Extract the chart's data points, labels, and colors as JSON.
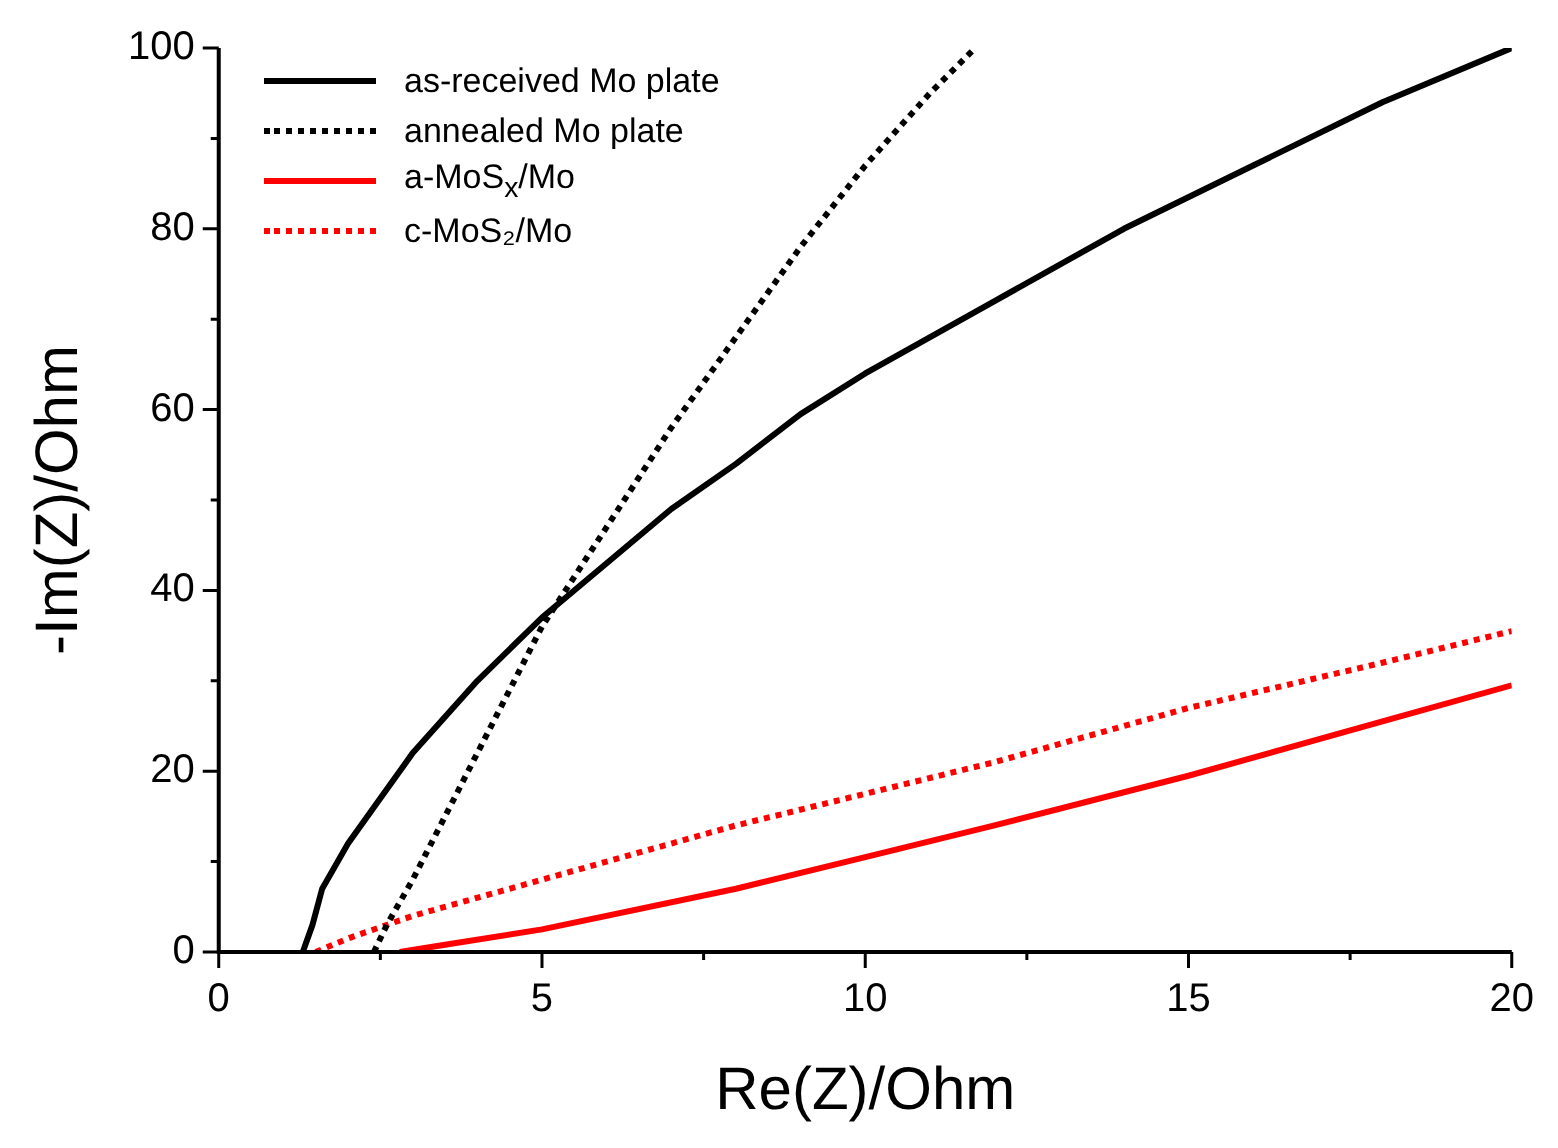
{
  "chart_data": {
    "type": "line",
    "xlabel": "Re(Z)/Ohm",
    "ylabel": "-Im(Z)/Ohm",
    "xlim": [
      0,
      20
    ],
    "ylim": [
      0,
      100
    ],
    "xticks": [
      0,
      5,
      10,
      15,
      20
    ],
    "yticks": [
      0,
      20,
      40,
      60,
      80,
      100
    ],
    "grid": false,
    "legend": "top left",
    "marker": "none",
    "series": [
      {
        "name": "as-received Mo plate",
        "color": "#000000",
        "line_style": "solid",
        "x": [
          1.3,
          1.45,
          1.6,
          2,
          2.5,
          3,
          4,
          5,
          6,
          7,
          8,
          9,
          10,
          12,
          14,
          16,
          18,
          20
        ],
        "values": [
          0,
          3,
          7,
          12,
          17,
          22,
          30,
          37,
          43,
          49,
          54,
          59.5,
          64,
          72,
          80,
          87,
          94,
          100
        ]
      },
      {
        "name": "annealed Mo plate",
        "color": "#000000",
        "line_style": "dotted",
        "x": [
          2.4,
          2.6,
          3,
          4,
          5,
          6,
          7,
          8,
          9,
          10,
          11,
          11.7
        ],
        "values": [
          0,
          3,
          8,
          22,
          36,
          47,
          58,
          68,
          78,
          87,
          95,
          100
        ]
      },
      {
        "name": "a-MoS$_{x}$/Mo",
        "color": "#ff0000",
        "line_style": "solid",
        "x": [
          2.8,
          3.5,
          5,
          8,
          10,
          12,
          15,
          18,
          20
        ],
        "values": [
          0,
          0.8,
          2.5,
          7,
          10.5,
          14,
          19.5,
          25.5,
          29.5
        ]
      },
      {
        "name": "c-MoS₂/Mo",
        "color": "#ff0000",
        "line_style": "dotted",
        "x": [
          1.5,
          2,
          3,
          5,
          8,
          10,
          12,
          15,
          18,
          20
        ],
        "values": [
          0,
          1.5,
          4,
          8,
          14,
          17.5,
          21,
          27,
          32,
          35.5
        ]
      }
    ]
  }
}
